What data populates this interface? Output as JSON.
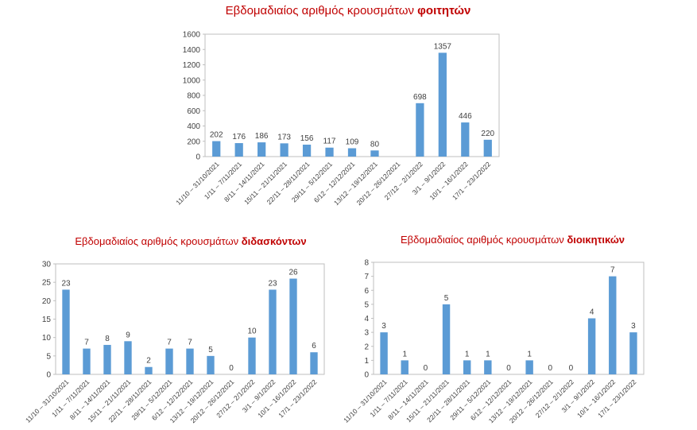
{
  "chart_data": [
    {
      "type": "bar",
      "title": "Εβδομαδιαίος αριθμός κρουσμάτων",
      "title_emphasis": "φοιτητών",
      "categories": [
        "11/10 – 31/10/2021",
        "1/11 – 7/11/2021",
        "8/11 – 14/11/2021",
        "15/11 – 21/11/2021",
        "22/11 – 28/11/2021",
        "29/11 – 5/12/2021",
        "6/12 – 12/12/2021",
        "13/12 – 19/12/2021",
        "20/12 – 26/12/2021",
        "27/12 – 2/1/2022",
        "3/1 – 9/1/2022",
        "10/1 – 16/1/2022",
        "17/1 – 23/1/2022"
      ],
      "values": [
        202,
        176,
        186,
        173,
        156,
        117,
        109,
        80,
        null,
        698,
        1357,
        446,
        220
      ],
      "color": "#5b9bd5",
      "ylim": [
        0,
        1600
      ],
      "yticks": [
        0,
        200,
        400,
        600,
        800,
        1000,
        1200,
        1400,
        1600
      ],
      "grid": false
    },
    {
      "type": "bar",
      "title": "Εβδομαδιαίος αριθμός κρουσμάτων",
      "title_emphasis": "διδασκόντων",
      "categories": [
        "11/10 – 31/10/2021",
        "1/11 – 7/11/2021",
        "8/11 – 14/11/2021",
        "15/11 – 21/11/2021",
        "22/11 – 28/11/2021",
        "29/11 – 5/12/2021",
        "6/12 – 12/12/2021",
        "13/12 – 19/12/2021",
        "20/12 – 26/12/2021",
        "27/12 – 2/1/2022",
        "3/1 – 9/1/2022",
        "10/1 – 16/1/2022",
        "17/1 – 23/1/2022"
      ],
      "values": [
        23,
        7,
        8,
        9,
        2,
        7,
        7,
        5,
        0,
        10,
        23,
        26,
        6
      ],
      "color": "#5b9bd5",
      "ylim": [
        0,
        30
      ],
      "yticks": [
        0,
        5,
        10,
        15,
        20,
        25,
        30
      ],
      "grid": false
    },
    {
      "type": "bar",
      "title": "Εβδομαδιαίος αριθμός κρουσμάτων",
      "title_emphasis": "διοικητικών",
      "categories": [
        "11/10 – 31/10/2021",
        "1/11 – 7/11/2021",
        "8/11 – 14/11/2021",
        "15/11 – 21/11/2021",
        "22/11 – 28/11/2021",
        "29/11 – 5/12/2021",
        "6/12 – 12/12/2021",
        "13/12 – 19/12/2021",
        "20/12 – 26/12/2021",
        "27/12 – 2/1/2022",
        "3/1 – 9/1/2022",
        "10/1 – 16/1/2022",
        "17/1 – 23/1/2022"
      ],
      "values": [
        3,
        1,
        0,
        5,
        1,
        1,
        0,
        1,
        0,
        0,
        4,
        7,
        3
      ],
      "color": "#5b9bd5",
      "ylim": [
        0,
        8
      ],
      "yticks": [
        0,
        1,
        2,
        3,
        4,
        5,
        6,
        7,
        8
      ],
      "grid": false
    }
  ]
}
